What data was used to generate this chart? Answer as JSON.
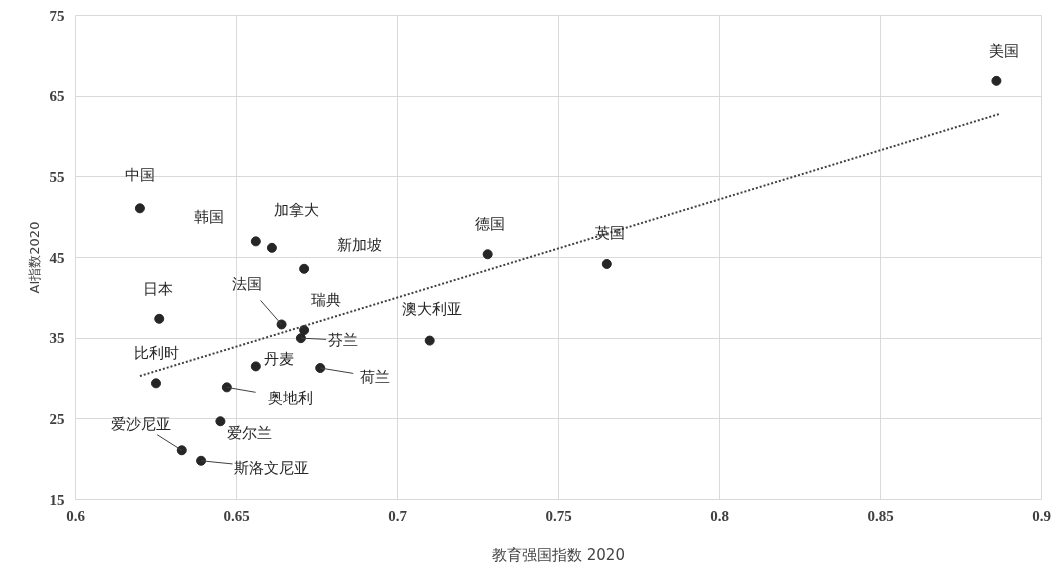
{
  "chart_data": {
    "type": "scatter",
    "xlabel": "教育强国指数 2020",
    "ylabel": "AI指数2020",
    "xlim": [
      0.6,
      0.9
    ],
    "xticks": [
      {
        "value": 0.6,
        "label": "0.6"
      },
      {
        "value": 0.65,
        "label": "0.65"
      },
      {
        "value": 0.7,
        "label": "0.7"
      },
      {
        "value": 0.75,
        "label": "0.75"
      },
      {
        "value": 0.8,
        "label": "0.8"
      },
      {
        "value": 0.85,
        "label": "0.85"
      },
      {
        "value": 0.9,
        "label": "0.9"
      }
    ],
    "ylim": [
      15,
      75
    ],
    "yticks": [
      15,
      25,
      35,
      45,
      55,
      65,
      75
    ],
    "grid": true,
    "series": [
      {
        "marker": "circle",
        "color": "#262626",
        "x": [
          0.886,
          0.62,
          0.656,
          0.661,
          0.671,
          0.728,
          0.765,
          0.626,
          0.664,
          0.671,
          0.67,
          0.71,
          0.625,
          0.656,
          0.676,
          0.647,
          0.645,
          0.633,
          0.639
        ],
        "values": [
          66.9,
          51.1,
          47.0,
          46.2,
          43.6,
          45.4,
          44.2,
          37.4,
          36.7,
          36.0,
          35.0,
          34.7,
          29.4,
          31.5,
          31.3,
          28.9,
          24.7,
          21.1,
          19.8
        ]
      },
      {
        "type": "line",
        "color": "#404040",
        "line_style": "dotted",
        "x": [
          0.62,
          0.887
        ],
        "values": [
          30.3,
          62.8
        ]
      }
    ],
    "annotations": [
      {
        "text": "美国",
        "x": 0.886,
        "y": 66.9
      },
      {
        "text": "中国",
        "x": 0.62,
        "y": 51.1
      },
      {
        "text": "韩国",
        "x": 0.656,
        "y": 47.0
      },
      {
        "text": "加拿大",
        "x": 0.661,
        "y": 46.2
      },
      {
        "text": "新加坡",
        "x": 0.671,
        "y": 43.6
      },
      {
        "text": "德国",
        "x": 0.728,
        "y": 45.4
      },
      {
        "text": "英国",
        "x": 0.765,
        "y": 44.2
      },
      {
        "text": "日本",
        "x": 0.626,
        "y": 37.4
      },
      {
        "text": "法国",
        "x": 0.664,
        "y": 36.7
      },
      {
        "text": "瑞典",
        "x": 0.671,
        "y": 36.0
      },
      {
        "text": "芬兰",
        "x": 0.67,
        "y": 35.0
      },
      {
        "text": "澳大利亚",
        "x": 0.71,
        "y": 34.7
      },
      {
        "text": "比利时",
        "x": 0.625,
        "y": 29.4
      },
      {
        "text": "丹麦",
        "x": 0.656,
        "y": 31.5
      },
      {
        "text": "荷兰",
        "x": 0.676,
        "y": 31.3
      },
      {
        "text": "奥地利",
        "x": 0.647,
        "y": 28.9
      },
      {
        "text": "爱尔兰",
        "x": 0.645,
        "y": 24.7
      },
      {
        "text": "爱沙尼亚",
        "x": 0.633,
        "y": 21.1
      },
      {
        "text": "斯洛文尼亚",
        "x": 0.639,
        "y": 19.8
      }
    ]
  }
}
